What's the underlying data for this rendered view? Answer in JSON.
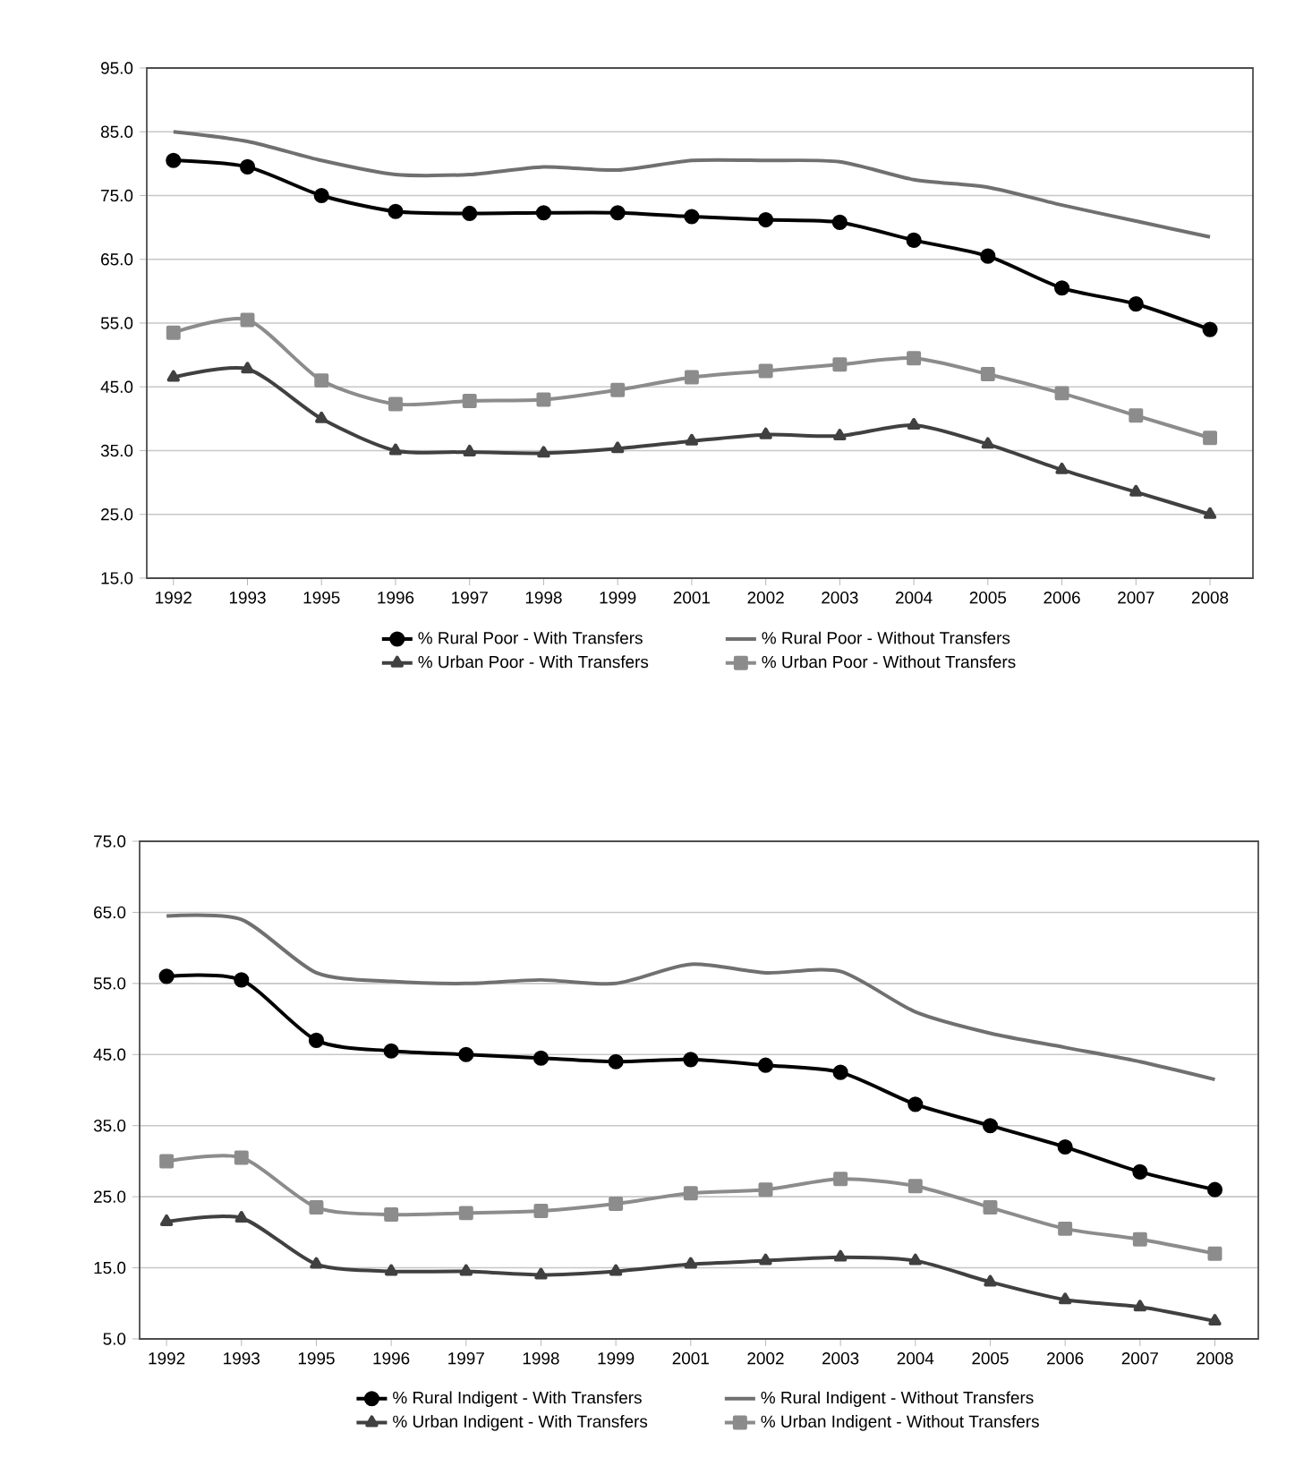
{
  "chart_data": [
    {
      "type": "line",
      "categories": [
        "1992",
        "1993",
        "1995",
        "1996",
        "1997",
        "1998",
        "1999",
        "2001",
        "2002",
        "2003",
        "2004",
        "2005",
        "2006",
        "2007",
        "2008"
      ],
      "ylim": [
        15,
        95
      ],
      "yticks": [
        {
          "value": 15,
          "label": "15.0"
        },
        {
          "value": 25,
          "label": "25.0"
        },
        {
          "value": 35,
          "label": "35.0"
        },
        {
          "value": 45,
          "label": "45.0"
        },
        {
          "value": 55,
          "label": "55.0"
        },
        {
          "value": 65,
          "label": "65.0"
        },
        {
          "value": 75,
          "label": "75.0"
        },
        {
          "value": 85,
          "label": "85.0"
        },
        {
          "value": 95,
          "label": "95.0"
        }
      ],
      "grid": "y",
      "legend": "bottom",
      "series": [
        {
          "name": "% Rural Poor - With Transfers",
          "color": "#000000",
          "marker": "circle",
          "values": [
            80.5,
            79.5,
            75,
            72.5,
            72.2,
            72.3,
            72.3,
            71.7,
            71.2,
            70.8,
            68,
            65.5,
            60.5,
            58,
            54
          ]
        },
        {
          "name": "% Rural Poor - Without Transfers",
          "color": "#707070",
          "marker": "none",
          "values": [
            85,
            83.5,
            80.5,
            78.3,
            78.3,
            79.5,
            79,
            80.5,
            80.5,
            80.3,
            77.5,
            76.3,
            73.5,
            71,
            68.5
          ]
        },
        {
          "name": "% Urban Poor - With Transfers",
          "color": "#404040",
          "marker": "triangle",
          "values": [
            46.5,
            47.8,
            40,
            35,
            34.8,
            34.6,
            35.3,
            36.5,
            37.5,
            37.3,
            39,
            36,
            32,
            28.5,
            25
          ]
        },
        {
          "name": "% Urban Poor - Without Transfers",
          "color": "#8c8c8c",
          "marker": "square",
          "values": [
            53.5,
            55.5,
            46,
            42.3,
            42.8,
            43,
            44.5,
            46.5,
            47.5,
            48.5,
            49.5,
            47,
            44,
            40.5,
            37
          ]
        }
      ]
    },
    {
      "type": "line",
      "categories": [
        "1992",
        "1993",
        "1995",
        "1996",
        "1997",
        "1998",
        "1999",
        "2001",
        "2002",
        "2003",
        "2004",
        "2005",
        "2006",
        "2007",
        "2008"
      ],
      "ylim": [
        5,
        75
      ],
      "yticks": [
        {
          "value": 5,
          "label": "5.0"
        },
        {
          "value": 15,
          "label": "15.0"
        },
        {
          "value": 25,
          "label": "25.0"
        },
        {
          "value": 35,
          "label": "35.0"
        },
        {
          "value": 45,
          "label": "45.0"
        },
        {
          "value": 55,
          "label": "55.0"
        },
        {
          "value": 65,
          "label": "65.0"
        },
        {
          "value": 75,
          "label": "75.0"
        }
      ],
      "grid": "y",
      "legend": "bottom",
      "series": [
        {
          "name": "% Rural Indigent - With Transfers",
          "color": "#000000",
          "marker": "circle",
          "values": [
            56,
            55.5,
            47,
            45.5,
            45,
            44.5,
            44,
            44.3,
            43.5,
            42.5,
            38,
            35,
            32,
            28.5,
            26
          ]
        },
        {
          "name": "% Rural Indigent - Without Transfers",
          "color": "#707070",
          "marker": "none",
          "values": [
            64.5,
            64,
            56.5,
            55.3,
            55,
            55.5,
            55,
            57.7,
            56.5,
            56.7,
            51,
            48,
            46,
            44,
            41.5
          ]
        },
        {
          "name": "% Urban Indigent - With Transfers",
          "color": "#404040",
          "marker": "triangle",
          "values": [
            21.5,
            22,
            15.5,
            14.5,
            14.5,
            14,
            14.5,
            15.5,
            16,
            16.5,
            16,
            13,
            10.5,
            9.5,
            7.5
          ]
        },
        {
          "name": "% Urban Indigent - Without Transfers",
          "color": "#8c8c8c",
          "marker": "square",
          "values": [
            30,
            30.5,
            23.5,
            22.5,
            22.7,
            23,
            24,
            25.5,
            26,
            27.5,
            26.5,
            23.5,
            20.5,
            19,
            17
          ]
        }
      ]
    }
  ]
}
